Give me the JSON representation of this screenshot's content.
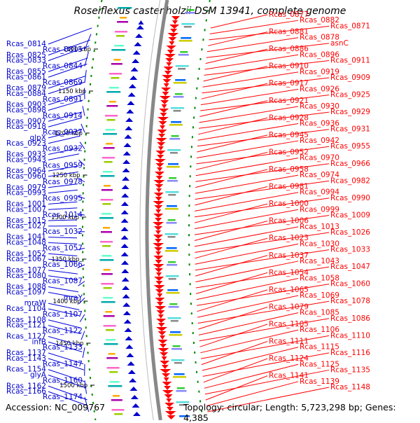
{
  "header": {
    "title": "Roseiflexus castenholzii DSM 13941, complete genome"
  },
  "footer": {
    "accession": "Accession: NC_009767",
    "topology": "Topology: circular; Length: 5,723,298 bp; Genes: 4,385"
  },
  "colors": {
    "forward_strand": "#0000cc",
    "reverse_strand": "#ff0000",
    "leader_line_left": "#0000dd",
    "leader_line_right": "#ff0000",
    "backbone": "#888888",
    "tick_green": "#008800"
  },
  "map": {
    "scale_ticks": [
      "1100 kbp",
      "1150 kbp",
      "1200 kbp",
      "1250 kbp",
      "1300 kbp",
      "1350 kbp",
      "1400 kbp",
      "1450 kbp",
      "1500 kbp"
    ],
    "left_labels": [
      "Rcas_0814",
      "Rcas_0815",
      "Rcas_0825",
      "Rcas_0833",
      "Rcas_0844",
      "Rcas_0855",
      "Rcas_0861",
      "Rcas_0869",
      "Rcas_0879",
      "Rcas_0884",
      "Rcas_0891",
      "Rcas_0903",
      "Rcas_0898",
      "Rcas_0914",
      "Rcas_0907",
      "Rcas_0918",
      "Rcas_0927",
      "glpX",
      "Rcas_0923",
      "Rcas_0932",
      "Rcas_0933",
      "Rcas_0943",
      "Rcas_0959",
      "Rcas_0964",
      "Rcas_0960",
      "Rcas_0978",
      "Rcas_0979",
      "Rcas_0993",
      "Rcas_0995",
      "Rcas_1001",
      "Rcas_1007",
      "Rcas_1014",
      "Rcas_1015",
      "Rcas_1027",
      "Rcas_1032",
      "Rcas_1041",
      "Rcas_1048",
      "Rcas_1057",
      "Rcas_1052",
      "Rcas_1067",
      "Rcas_1066",
      "Rcas_1077",
      "Rcas_1080",
      "Rcas_1087",
      "Rcas_1088",
      "Rcas_1097",
      "mraY",
      "mraW",
      "Rcas_1104",
      "Rcas_1107",
      "Rcas_1108",
      "Rcas_1121",
      "Rcas_1122",
      "Rcas_1127",
      "infB",
      "Rcas_1133",
      "Rcas_1137",
      "Rcas_1143",
      "Rcas_1147",
      "Rcas_1154",
      "glyA",
      "Rcas_1160",
      "Rcas_1162",
      "Rcas_1166",
      "Rcas_1174"
    ],
    "right_labels": [
      "Rcas_0877",
      "Rcas_0882",
      "Rcas_0871",
      "Rcas_0881",
      "Rcas_0878",
      "asnC",
      "Rcas_0886",
      "Rcas_0896",
      "Rcas_0911",
      "Rcas_0910",
      "Rcas_0919",
      "Rcas_0909",
      "Rcas_0917",
      "Rcas_0926",
      "Rcas_0925",
      "Rcas_0921",
      "Rcas_0930",
      "Rcas_0929",
      "Rcas_0928",
      "Rcas_0936",
      "Rcas_0931",
      "Rcas_0945",
      "Rcas_0942",
      "Rcas_0955",
      "Rcas_0952",
      "Rcas_0970",
      "Rcas_0966",
      "Rcas_0958",
      "Rcas_0974",
      "Rcas_0982",
      "Rcas_0981",
      "Rcas_0994",
      "Rcas_0990",
      "Rcas_1000",
      "Rcas_0999",
      "Rcas_1009",
      "Rcas_1006",
      "Rcas_1013",
      "Rcas_1026",
      "Rcas_1023",
      "Rcas_1030",
      "Rcas_1033",
      "Rcas_1037",
      "Rcas_1043",
      "Rcas_1047",
      "Rcas_1054",
      "Rcas_1058",
      "Rcas_1060",
      "Rcas_1065",
      "Rcas_1069",
      "Rcas_1078",
      "Rcas_1079",
      "Rcas_1085",
      "Rcas_1086",
      "Rcas_1105",
      "Rcas_1106",
      "Rcas_1110",
      "Rcas_1111",
      "Rcas_1115",
      "Rcas_1116",
      "Rcas_1124",
      "Rcas_1125",
      "Rcas_1135",
      "Rcas_1141",
      "Rcas_1139",
      "Rcas_1148"
    ]
  }
}
